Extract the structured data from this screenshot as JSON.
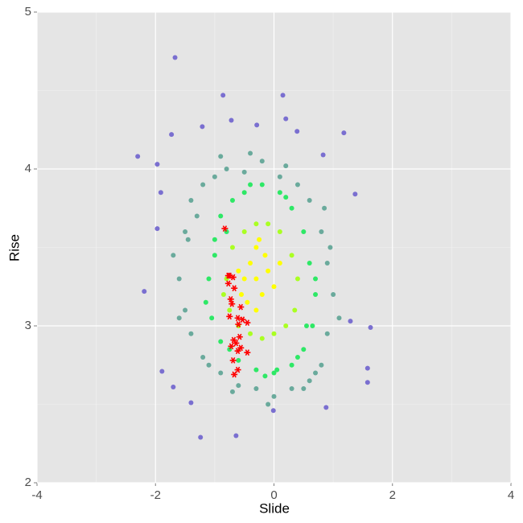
{
  "chart_data": {
    "type": "scatter",
    "x_label": "Slide",
    "y_label": "Rise",
    "xlim": [
      -4,
      4
    ],
    "ylim": [
      2,
      5
    ],
    "xticks": [
      -4,
      -2,
      0,
      2,
      4
    ],
    "yticks": [
      2,
      3,
      4,
      5
    ],
    "grid": true,
    "minor_grid": true,
    "background": "#e5e5e5",
    "series": [
      {
        "color": "#7a6fd0",
        "shape": "dot",
        "x": [
          -1.67,
          -0.86,
          0.15,
          -2.3,
          1.18,
          1.37,
          -2.19,
          1.63,
          1.58,
          1.58,
          -1.24,
          -0.64,
          -1.89,
          -1.7,
          0.88,
          -0.01,
          -1.4,
          -0.72,
          0.2,
          -0.29,
          -1.21,
          -1.73,
          -1.97,
          0.83,
          0.39,
          -1.91,
          -1.97,
          1.29
        ],
        "values": [
          4.71,
          4.47,
          4.47,
          4.08,
          4.23,
          3.84,
          3.22,
          2.99,
          2.73,
          2.64,
          2.29,
          2.3,
          2.71,
          2.61,
          2.48,
          2.46,
          2.51,
          4.31,
          4.32,
          4.28,
          4.27,
          4.22,
          4.03,
          4.09,
          4.24,
          3.85,
          3.62,
          3.03
        ]
      },
      {
        "color": "#6aaa9c",
        "shape": "dot",
        "x": [
          -1.6,
          -1.5,
          -1.4,
          -1.2,
          -1.0,
          -0.8,
          -0.5,
          -0.2,
          0.1,
          0.4,
          0.6,
          0.8,
          0.9,
          1.0,
          0.9,
          0.8,
          0.6,
          0.3,
          0.0,
          -0.3,
          -0.6,
          -0.9,
          -1.2,
          -1.4,
          -1.5,
          -1.7,
          -1.3,
          -1.1,
          0.7,
          1.1,
          -0.4,
          0.2,
          -1.6,
          0.95,
          -0.9,
          0.5,
          -1.45,
          0.85,
          -0.1,
          -0.7
        ],
        "values": [
          3.3,
          3.6,
          3.8,
          3.9,
          3.95,
          4.0,
          3.98,
          4.05,
          3.95,
          3.9,
          3.8,
          3.6,
          3.4,
          3.2,
          2.95,
          2.75,
          2.65,
          2.6,
          2.55,
          2.6,
          2.62,
          2.7,
          2.8,
          2.95,
          3.1,
          3.45,
          3.7,
          2.75,
          2.7,
          3.05,
          4.1,
          4.02,
          3.05,
          3.5,
          4.08,
          2.6,
          3.55,
          3.75,
          2.5,
          2.58
        ]
      },
      {
        "color": "#2ee866",
        "shape": "dot",
        "x": [
          -1.1,
          -1.0,
          -0.9,
          -0.7,
          -0.5,
          -0.2,
          0.1,
          0.3,
          0.5,
          0.6,
          0.7,
          0.65,
          0.5,
          0.3,
          0.0,
          -0.3,
          -0.6,
          -0.9,
          -1.05,
          -1.15,
          -0.8,
          0.4,
          -0.4,
          0.2,
          -1.0,
          0.55,
          -0.15,
          -0.75,
          0.7,
          0.05
        ],
        "values": [
          3.3,
          3.55,
          3.7,
          3.8,
          3.85,
          3.9,
          3.85,
          3.75,
          3.6,
          3.4,
          3.2,
          3.0,
          2.85,
          2.75,
          2.7,
          2.72,
          2.78,
          2.9,
          3.05,
          3.15,
          3.6,
          2.8,
          3.9,
          3.82,
          3.45,
          3.0,
          2.68,
          2.85,
          3.3,
          2.72
        ]
      },
      {
        "color": "#aaff22",
        "shape": "dot",
        "x": [
          -0.8,
          -0.7,
          -0.5,
          -0.3,
          -0.1,
          0.1,
          0.3,
          0.4,
          0.35,
          0.2,
          0.0,
          -0.2,
          -0.4,
          -0.6,
          -0.75,
          -0.85
        ],
        "values": [
          3.3,
          3.5,
          3.6,
          3.65,
          3.65,
          3.6,
          3.45,
          3.3,
          3.1,
          3.0,
          2.95,
          2.92,
          2.95,
          3.0,
          3.1,
          3.2
        ]
      },
      {
        "color": "#ffff00",
        "shape": "dot",
        "x": [
          -0.3,
          -0.4,
          -0.2,
          -0.5,
          -0.1,
          -0.3,
          -0.45,
          -0.15,
          0.0,
          -0.6,
          -0.3,
          -0.25,
          0.1,
          -0.55
        ],
        "values": [
          3.3,
          3.4,
          3.2,
          3.3,
          3.35,
          3.5,
          3.15,
          3.45,
          3.25,
          3.35,
          3.1,
          3.55,
          3.4,
          3.2
        ]
      },
      {
        "color": "#ff0000",
        "shape": "asterisk",
        "x": [
          -0.83,
          -0.75,
          -0.69,
          -0.77,
          -0.67,
          -0.73,
          -0.71,
          -0.75,
          -0.56,
          -0.61,
          -0.53,
          -0.45,
          -0.6,
          -0.68,
          -0.58,
          -0.64,
          -0.72,
          -0.56,
          -0.61,
          -0.45,
          -0.69,
          -0.61,
          -0.67,
          -0.77
        ],
        "values": [
          3.62,
          3.32,
          3.31,
          3.27,
          3.24,
          3.17,
          3.14,
          3.06,
          3.12,
          3.05,
          3.04,
          3.02,
          3.01,
          2.91,
          2.93,
          2.89,
          2.87,
          2.86,
          2.84,
          2.83,
          2.78,
          2.72,
          2.69,
          3.32
        ]
      }
    ]
  }
}
